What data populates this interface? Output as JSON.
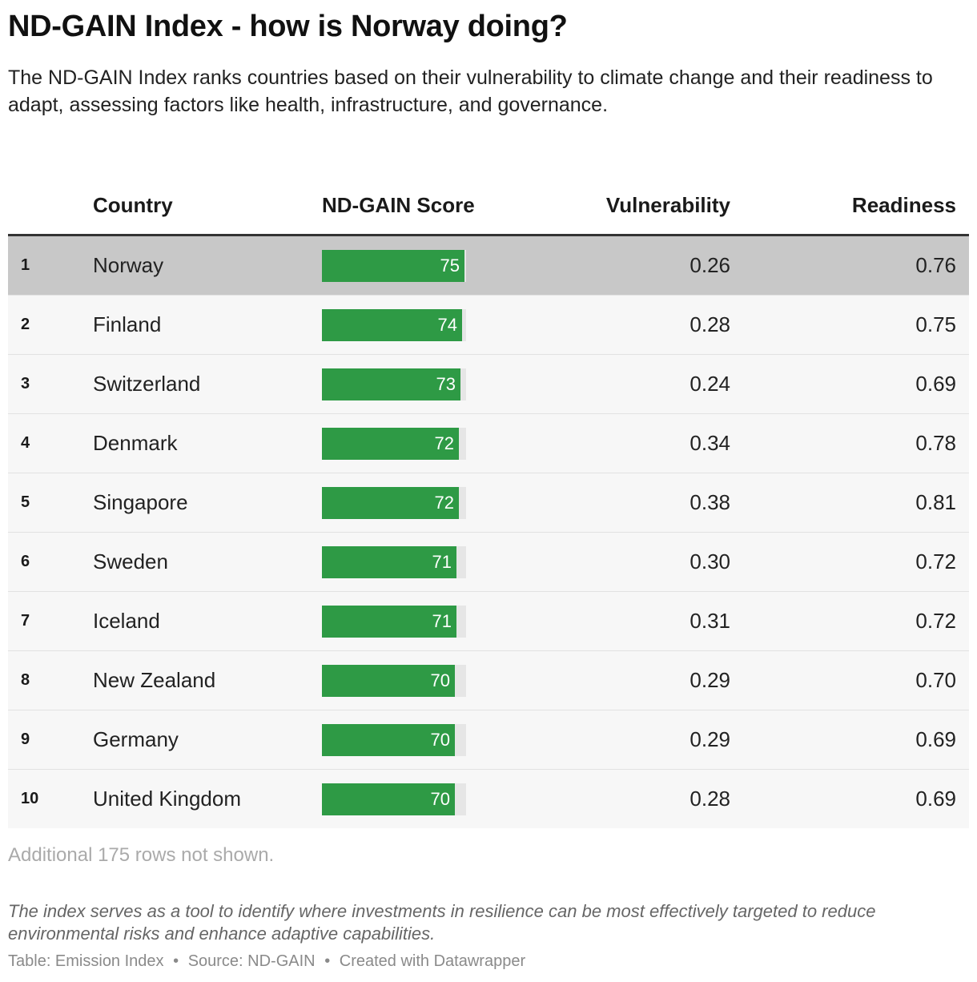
{
  "title": "ND-GAIN Index - how is Norway doing?",
  "subtitle": "The ND-GAIN Index ranks countries based on their vulnerability to climate change and their readiness to adapt, assessing factors like health, infrastructure, and governance.",
  "colors": {
    "bar": "#2e9a45",
    "bar_track": "#e6e6e6",
    "highlight_row": "#c8c8c8",
    "row_background": "#f7f7f7"
  },
  "table": {
    "headers": {
      "country": "Country",
      "score": "ND-GAIN Score",
      "vulnerability": "Vulnerability",
      "readiness": "Readiness"
    },
    "more_rows": "Additional 175 rows not shown."
  },
  "chart_data": {
    "type": "table",
    "title": "ND-GAIN Index - how is Norway doing?",
    "columns": [
      "",
      "Country",
      "ND-GAIN Score",
      "Vulnerability",
      "Readiness"
    ],
    "score_bar_range": [
      0,
      76
    ],
    "highlighted_row": "Norway",
    "rows": [
      {
        "rank": "1",
        "country": "Norway",
        "score": 75,
        "vulnerability": "0.26",
        "readiness": "0.76"
      },
      {
        "rank": "2",
        "country": "Finland",
        "score": 74,
        "vulnerability": "0.28",
        "readiness": "0.75"
      },
      {
        "rank": "3",
        "country": "Switzerland",
        "score": 73,
        "vulnerability": "0.24",
        "readiness": "0.69"
      },
      {
        "rank": "4",
        "country": "Denmark",
        "score": 72,
        "vulnerability": "0.34",
        "readiness": "0.78"
      },
      {
        "rank": "5",
        "country": "Singapore",
        "score": 72,
        "vulnerability": "0.38",
        "readiness": "0.81"
      },
      {
        "rank": "6",
        "country": "Sweden",
        "score": 71,
        "vulnerability": "0.30",
        "readiness": "0.72"
      },
      {
        "rank": "7",
        "country": "Iceland",
        "score": 71,
        "vulnerability": "0.31",
        "readiness": "0.72"
      },
      {
        "rank": "8",
        "country": "New Zealand",
        "score": 70,
        "vulnerability": "0.29",
        "readiness": "0.70"
      },
      {
        "rank": "9",
        "country": "Germany",
        "score": 70,
        "vulnerability": "0.29",
        "readiness": "0.69"
      },
      {
        "rank": "10",
        "country": "United Kingdom",
        "score": 70,
        "vulnerability": "0.28",
        "readiness": "0.69"
      }
    ]
  },
  "notes": "The index serves as a tool to identify where investments in resilience can be most effectively targeted to reduce environmental risks and enhance adaptive capabilities.",
  "footer": {
    "table_label": "Table: Emission Index",
    "source": "Source: ND-GAIN",
    "created_with": "Created with Datawrapper",
    "separator": "•"
  }
}
